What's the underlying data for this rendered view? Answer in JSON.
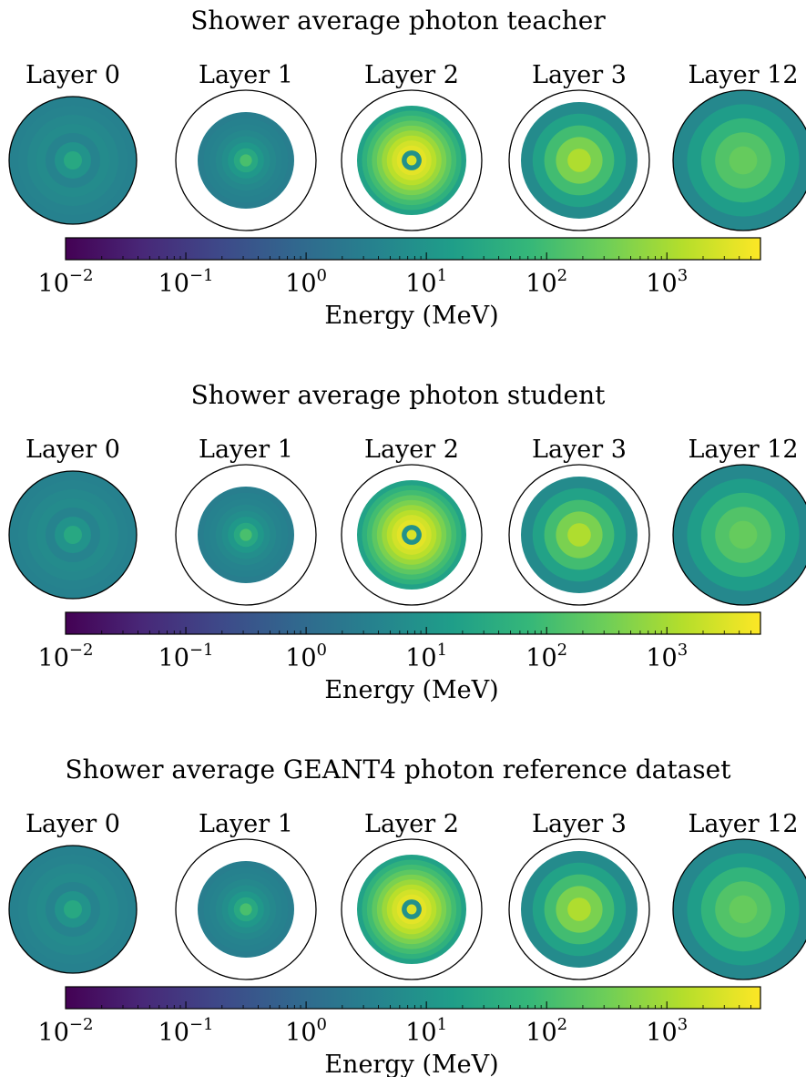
{
  "colormap": {
    "name": "viridis",
    "stops": [
      "#440154",
      "#482878",
      "#3e4989",
      "#31688e",
      "#26828e",
      "#1f9e89",
      "#35b779",
      "#6ece58",
      "#b5de2b",
      "#fde725"
    ],
    "scale": "log",
    "vmin": 0.01,
    "vmax": 6000
  },
  "chart_data": [
    {
      "type": "heatmap",
      "title": "Shower average photon teacher",
      "colorbar": {
        "label": "Energy (MeV)",
        "ticks": [
          0.01,
          0.1,
          1,
          10,
          100,
          1000
        ]
      },
      "panels": [
        {
          "label": "Layer 0",
          "radial_energy_mev": [
            30,
            9,
            4,
            6,
            5,
            4,
            3.5
          ]
        },
        {
          "label": "Layer 1",
          "radial_energy_mev": [
            120,
            30,
            12,
            7,
            5,
            4,
            3.5,
            3
          ]
        },
        {
          "label": "Layer 2",
          "radial_energy_mev": [
            3000,
            8,
            3500,
            2500,
            1500,
            800,
            400,
            200,
            100,
            50,
            20
          ]
        },
        {
          "label": "Layer 3",
          "radial_energy_mev": [
            1200,
            400,
            100,
            20,
            6
          ]
        },
        {
          "label": "Layer 12",
          "radial_energy_mev": [
            250,
            150,
            60,
            15,
            5
          ]
        }
      ]
    },
    {
      "type": "heatmap",
      "title": "Shower average photon student",
      "colorbar": {
        "label": "Energy (MeV)",
        "ticks": [
          0.01,
          0.1,
          1,
          10,
          100,
          1000
        ]
      },
      "panels": [
        {
          "label": "Layer 0",
          "radial_energy_mev": [
            30,
            9,
            4,
            6,
            5,
            4,
            3.5
          ]
        },
        {
          "label": "Layer 1",
          "radial_energy_mev": [
            120,
            30,
            12,
            7,
            5,
            4,
            3.5,
            3
          ]
        },
        {
          "label": "Layer 2",
          "radial_energy_mev": [
            3000,
            8,
            3500,
            2500,
            1500,
            800,
            400,
            200,
            100,
            50,
            20
          ]
        },
        {
          "label": "Layer 3",
          "radial_energy_mev": [
            1200,
            400,
            100,
            20,
            6
          ]
        },
        {
          "label": "Layer 12",
          "radial_energy_mev": [
            250,
            150,
            60,
            15,
            5
          ]
        }
      ]
    },
    {
      "type": "heatmap",
      "title": "Shower average GEANT4 photon reference dataset",
      "colorbar": {
        "label": "Energy (MeV)",
        "ticks": [
          0.01,
          0.1,
          1,
          10,
          100,
          1000
        ]
      },
      "panels": [
        {
          "label": "Layer 0",
          "radial_energy_mev": [
            30,
            9,
            4,
            6,
            5,
            4,
            3.5
          ]
        },
        {
          "label": "Layer 1",
          "radial_energy_mev": [
            120,
            30,
            12,
            7,
            5,
            4,
            3.5,
            3
          ]
        },
        {
          "label": "Layer 2",
          "radial_energy_mev": [
            3000,
            8,
            3500,
            2500,
            1500,
            800,
            400,
            200,
            100,
            50,
            20
          ]
        },
        {
          "label": "Layer 3",
          "radial_energy_mev": [
            1200,
            400,
            100,
            20,
            6
          ]
        },
        {
          "label": "Layer 12",
          "radial_energy_mev": [
            250,
            150,
            60,
            15,
            5
          ]
        }
      ]
    }
  ]
}
